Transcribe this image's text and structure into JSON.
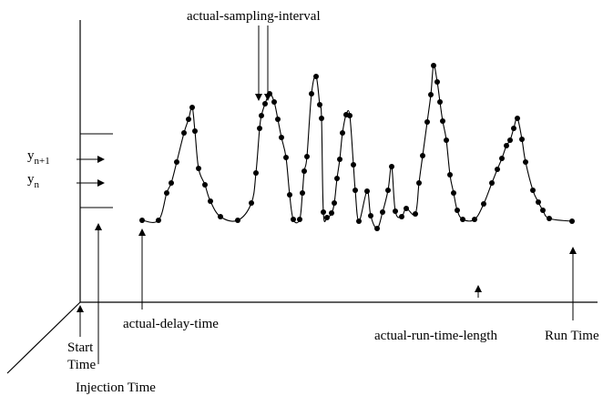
{
  "labels": {
    "actual_sampling_interval": "actual-sampling-interval",
    "actual_delay_time": "actual-delay-time",
    "actual_run_time_length": "actual-run-time-length",
    "run_time": "Run Time",
    "start_time_line1": "Start",
    "start_time_line2": "Time",
    "injection_time": "Injection Time"
  },
  "y_levels": {
    "upper": {
      "base": "y",
      "subscript": "n+1"
    },
    "lower": {
      "base": "y",
      "subscript": "n"
    }
  },
  "colors": {
    "ink": "#000000",
    "background": "#ffffff"
  }
}
